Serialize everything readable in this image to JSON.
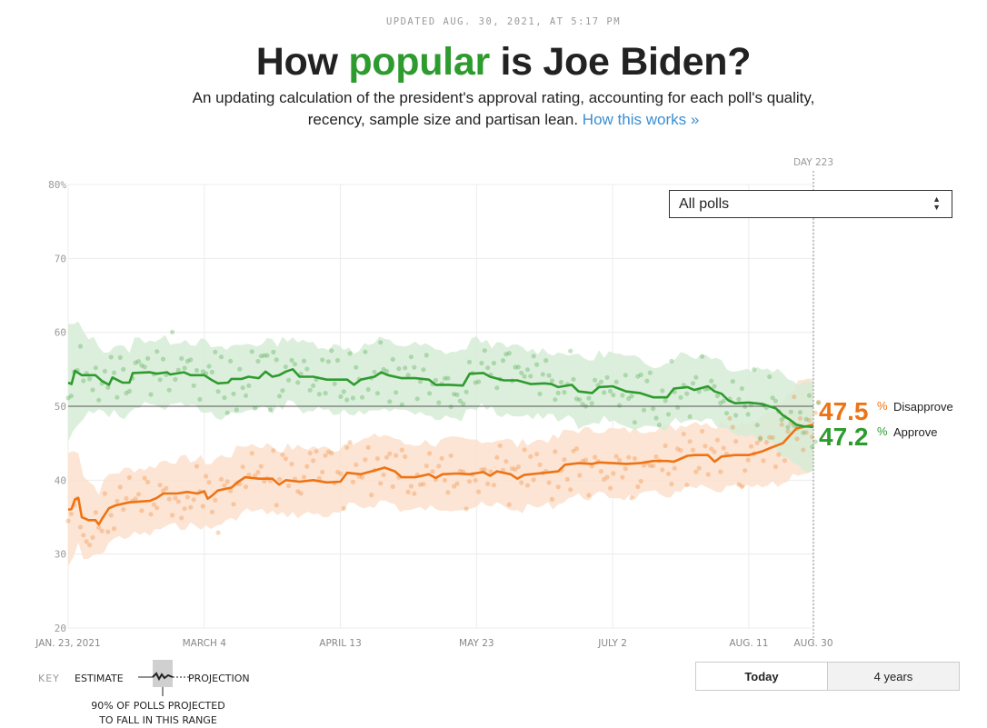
{
  "header": {
    "updated": "UPDATED AUG. 30, 2021, AT 5:17 PM",
    "title_pre": "How ",
    "title_highlight": "popular",
    "title_post": " is Joe Biden?",
    "subtitle_line1": "An updating calculation of the president's approval rating, accounting for each poll's quality,",
    "subtitle_line2": "recency, sample size and partisan lean. ",
    "link": "How this works »"
  },
  "dropdown": {
    "selected": "All polls"
  },
  "key": {
    "label": "KEY",
    "estimate": "ESTIMATE",
    "projection": "PROJECTION",
    "note_line1": "90% OF POLLS PROJECTED",
    "note_line2": "TO FALL IN THIS RANGE"
  },
  "toggle": {
    "today": "Today",
    "four_years": "4 years"
  },
  "colors": {
    "approve": "#2e9b2e",
    "disapprove": "#ee7314",
    "approve_band": "#d6ecd6",
    "disapprove_band": "#fbe0cc"
  },
  "chart_data": {
    "type": "line",
    "xlim": [
      0,
      219
    ],
    "ylim": [
      20,
      80
    ],
    "yticks": [
      20,
      30,
      40,
      50,
      60,
      70,
      80
    ],
    "ytick_labels": [
      "20",
      "30",
      "40",
      "50",
      "60",
      "70",
      "80%"
    ],
    "xticks": [
      {
        "day": 0,
        "label": "JAN. 23, 2021"
      },
      {
        "day": 40,
        "label": "MARCH 4"
      },
      {
        "day": 80,
        "label": "APRIL 13"
      },
      {
        "day": 120,
        "label": "MAY 23"
      },
      {
        "day": 160,
        "label": "JULY 2"
      },
      {
        "day": 200,
        "label": "AUG. 11"
      },
      {
        "day": 219,
        "label": "AUG. 30"
      }
    ],
    "marker": {
      "day": 219,
      "label": "DAY 223"
    },
    "reference_line": 50,
    "grid": true,
    "series": [
      {
        "name": "Approve",
        "final": "47.2",
        "points": [
          [
            0,
            53.2
          ],
          [
            1,
            53
          ],
          [
            2,
            54.8
          ],
          [
            4,
            54.2
          ],
          [
            8,
            54.2
          ],
          [
            10,
            53.4
          ],
          [
            12,
            52.9
          ],
          [
            13,
            53.9
          ],
          [
            16,
            53.2
          ],
          [
            18,
            53.2
          ],
          [
            19,
            54.5
          ],
          [
            24,
            54.6
          ],
          [
            26,
            54.4
          ],
          [
            29,
            54.6
          ],
          [
            30,
            54.3
          ],
          [
            34,
            54.6
          ],
          [
            36,
            54.2
          ],
          [
            40,
            54.2
          ],
          [
            42,
            53.6
          ],
          [
            44,
            53.1
          ],
          [
            47,
            53.2
          ],
          [
            48,
            53.7
          ],
          [
            51,
            53.7
          ],
          [
            53,
            54.0
          ],
          [
            56,
            53.8
          ],
          [
            58,
            54.7
          ],
          [
            60,
            54.0
          ],
          [
            62,
            54.2
          ],
          [
            64,
            54.7
          ],
          [
            66,
            55.0
          ],
          [
            68,
            54.0
          ],
          [
            72,
            54.0
          ],
          [
            76,
            53.6
          ],
          [
            80,
            53.6
          ],
          [
            82,
            53.6
          ],
          [
            84,
            52.9
          ],
          [
            86,
            53.6
          ],
          [
            90,
            54.0
          ],
          [
            92,
            54.6
          ],
          [
            94,
            54.2
          ],
          [
            98,
            53.8
          ],
          [
            102,
            53.8
          ],
          [
            106,
            53.6
          ],
          [
            108,
            52.9
          ],
          [
            112,
            52.9
          ],
          [
            116,
            52.8
          ],
          [
            118,
            54.4
          ],
          [
            122,
            54.5
          ],
          [
            124,
            54.0
          ],
          [
            128,
            53.5
          ],
          [
            132,
            53.5
          ],
          [
            136,
            53.0
          ],
          [
            140,
            53.1
          ],
          [
            142,
            53.0
          ],
          [
            144,
            52.6
          ],
          [
            148,
            52.9
          ],
          [
            150,
            52.0
          ],
          [
            154,
            51.8
          ],
          [
            156,
            52.6
          ],
          [
            160,
            52.7
          ],
          [
            164,
            52.0
          ],
          [
            168,
            51.8
          ],
          [
            172,
            51.2
          ],
          [
            176,
            51.2
          ],
          [
            178,
            52.4
          ],
          [
            182,
            52.6
          ],
          [
            184,
            52.2
          ],
          [
            188,
            52.7
          ],
          [
            190,
            52.0
          ],
          [
            192,
            51.7
          ],
          [
            194,
            50.8
          ],
          [
            196,
            50.4
          ],
          [
            200,
            50.5
          ],
          [
            204,
            50.3
          ],
          [
            206,
            50.0
          ],
          [
            208,
            49.7
          ],
          [
            210,
            48.8
          ],
          [
            212,
            48.2
          ],
          [
            214,
            47.5
          ],
          [
            216,
            47.3
          ],
          [
            219,
            47.2
          ]
        ]
      },
      {
        "name": "Disapprove",
        "final": "47.5",
        "points": [
          [
            0,
            36.0
          ],
          [
            1,
            36.1
          ],
          [
            2,
            37.4
          ],
          [
            3,
            37.6
          ],
          [
            4,
            35.0
          ],
          [
            6,
            34.6
          ],
          [
            8,
            34.6
          ],
          [
            9,
            34.0
          ],
          [
            10,
            34.8
          ],
          [
            12,
            36.2
          ],
          [
            14,
            36.6
          ],
          [
            18,
            37.0
          ],
          [
            24,
            37.2
          ],
          [
            26,
            37.6
          ],
          [
            28,
            38.2
          ],
          [
            32,
            38.2
          ],
          [
            35,
            38.4
          ],
          [
            38,
            38.2
          ],
          [
            40,
            38.5
          ],
          [
            41,
            37.5
          ],
          [
            42,
            37.8
          ],
          [
            44,
            38.6
          ],
          [
            48,
            39.0
          ],
          [
            50,
            39.8
          ],
          [
            52,
            40.4
          ],
          [
            56,
            40.2
          ],
          [
            60,
            40.2
          ],
          [
            62,
            39.4
          ],
          [
            64,
            40.0
          ],
          [
            68,
            39.8
          ],
          [
            72,
            40.0
          ],
          [
            76,
            39.7
          ],
          [
            80,
            39.8
          ],
          [
            82,
            41.0
          ],
          [
            86,
            40.8
          ],
          [
            90,
            41.3
          ],
          [
            93,
            41.7
          ],
          [
            96,
            41.2
          ],
          [
            98,
            40.4
          ],
          [
            102,
            40.4
          ],
          [
            106,
            40.8
          ],
          [
            108,
            40.3
          ],
          [
            110,
            40.8
          ],
          [
            114,
            40.9
          ],
          [
            118,
            40.8
          ],
          [
            122,
            41.1
          ],
          [
            124,
            40.6
          ],
          [
            126,
            41.2
          ],
          [
            130,
            40.8
          ],
          [
            132,
            40.2
          ],
          [
            134,
            40.7
          ],
          [
            138,
            40.9
          ],
          [
            142,
            41.1
          ],
          [
            144,
            41.2
          ],
          [
            146,
            42.1
          ],
          [
            150,
            42.3
          ],
          [
            154,
            42.2
          ],
          [
            156,
            42.4
          ],
          [
            160,
            42.3
          ],
          [
            164,
            42.2
          ],
          [
            168,
            42.3
          ],
          [
            172,
            42.6
          ],
          [
            176,
            42.6
          ],
          [
            178,
            42.5
          ],
          [
            182,
            43.3
          ],
          [
            184,
            43.4
          ],
          [
            188,
            43.4
          ],
          [
            190,
            42.5
          ],
          [
            192,
            43.2
          ],
          [
            196,
            43.4
          ],
          [
            200,
            43.4
          ],
          [
            204,
            43.9
          ],
          [
            206,
            44.3
          ],
          [
            210,
            45.0
          ],
          [
            212,
            46.0
          ],
          [
            214,
            47.0
          ],
          [
            216,
            47.2
          ],
          [
            219,
            47.5
          ]
        ]
      }
    ]
  }
}
